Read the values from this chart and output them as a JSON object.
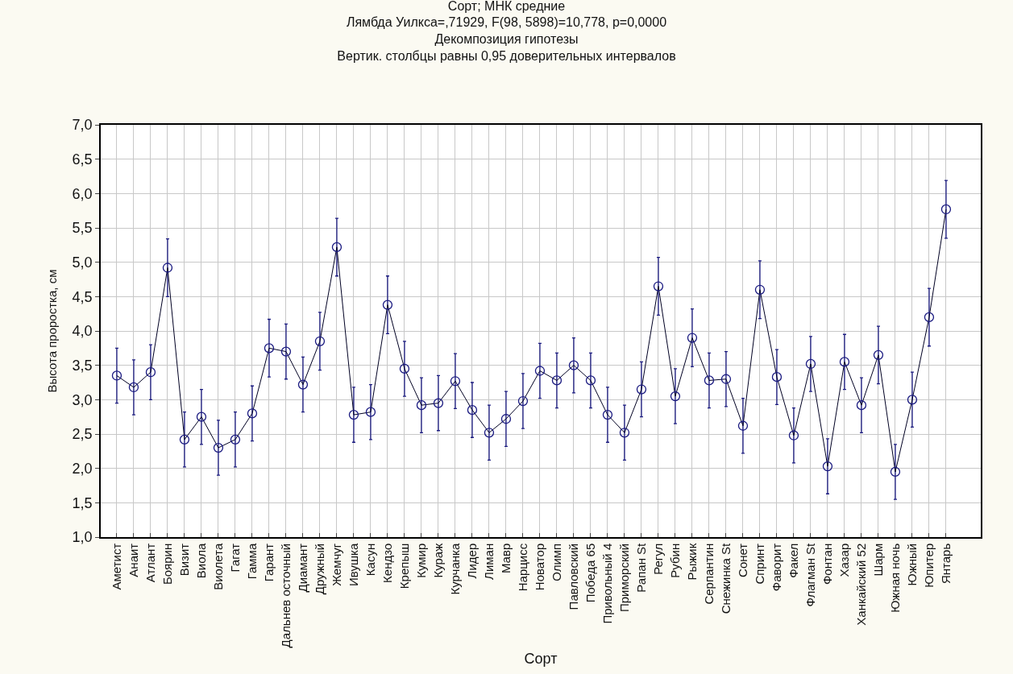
{
  "chart_data": {
    "type": "line",
    "title": "Сорт; МНК средние",
    "subtitle": "Лямбда Уилкса=,71929, F(98, 5898)=10,778, p=0,0000\nДекомпозиция гипотезы\nВертик. столбцы равны 0,95 доверительных интервалов",
    "xlabel": "Сорт",
    "ylabel": "Высота проростка, см",
    "categories": [
      "Аметист",
      "Анаит",
      "Атлант",
      "Боярин",
      "Визит",
      "Виола",
      "Виолета",
      "Гагат",
      "Гамма",
      "Гарант",
      "Дальнев осточный",
      "Диамант",
      "Дружный",
      "Жемчуг",
      "Ивушка",
      "Касун",
      "Кендзо",
      "Крепыш",
      "Кумир",
      "Кураж",
      "Курчанка",
      "Лидер",
      "Лиман",
      "Мавр",
      "Нарцисс",
      "Новатор",
      "Олимп",
      "Павловский",
      "Победа 65",
      "Привольный 4",
      "Приморский",
      "Рапан St",
      "Регул",
      "Рубин",
      "Рыжик",
      "Серпантин",
      "Снежинка St",
      "Сонет",
      "Спринт",
      "Фаворит",
      "Факел",
      "Флагман St",
      "Фонтан",
      "Хазар",
      "Ханкайский 52",
      "Шарм",
      "Южная ночь",
      "Южный",
      "Юпитер",
      "Янтарь"
    ],
    "series": [
      {
        "color": "#1a1a80",
        "values": [
          3.35,
          3.18,
          3.4,
          4.92,
          2.42,
          2.75,
          2.3,
          2.42,
          2.8,
          3.75,
          3.7,
          3.22,
          3.85,
          5.22,
          2.78,
          2.82,
          4.38,
          3.45,
          2.92,
          2.95,
          3.27,
          2.85,
          2.52,
          2.72,
          2.98,
          3.42,
          3.28,
          3.5,
          3.28,
          2.78,
          2.52,
          3.15,
          4.65,
          3.05,
          3.9,
          3.28,
          3.3,
          2.62,
          4.6,
          3.33,
          2.48,
          3.52,
          2.03,
          3.55,
          2.92,
          3.65,
          1.95,
          3.0,
          4.2,
          5.77
        ],
        "errors": [
          0.4,
          0.4,
          0.4,
          0.42,
          0.4,
          0.4,
          0.4,
          0.4,
          0.4,
          0.42,
          0.4,
          0.4,
          0.42,
          0.42,
          0.4,
          0.4,
          0.42,
          0.4,
          0.4,
          0.4,
          0.4,
          0.4,
          0.4,
          0.4,
          0.4,
          0.4,
          0.4,
          0.4,
          0.4,
          0.4,
          0.4,
          0.4,
          0.42,
          0.4,
          0.42,
          0.4,
          0.4,
          0.4,
          0.42,
          0.4,
          0.4,
          0.4,
          0.4,
          0.4,
          0.4,
          0.42,
          0.4,
          0.4,
          0.42,
          0.42
        ]
      }
    ],
    "ylim": [
      1.0,
      7.0
    ],
    "yticks": [
      {
        "value": 1.0,
        "label": "1,0"
      },
      {
        "value": 1.5,
        "label": "1,5"
      },
      {
        "value": 2.0,
        "label": "2,0"
      },
      {
        "value": 2.5,
        "label": "2,5"
      },
      {
        "value": 3.0,
        "label": "3,0"
      },
      {
        "value": 3.5,
        "label": "3,5"
      },
      {
        "value": 4.0,
        "label": "4,0"
      },
      {
        "value": 4.5,
        "label": "4,5"
      },
      {
        "value": 5.0,
        "label": "5,0"
      },
      {
        "value": 5.5,
        "label": "5,5"
      },
      {
        "value": 6.0,
        "label": "6,0"
      },
      {
        "value": 6.5,
        "label": "6,5"
      },
      {
        "value": 7.0,
        "label": "7,0"
      }
    ],
    "grid": true,
    "marker": "circle",
    "line_style": "solid"
  }
}
